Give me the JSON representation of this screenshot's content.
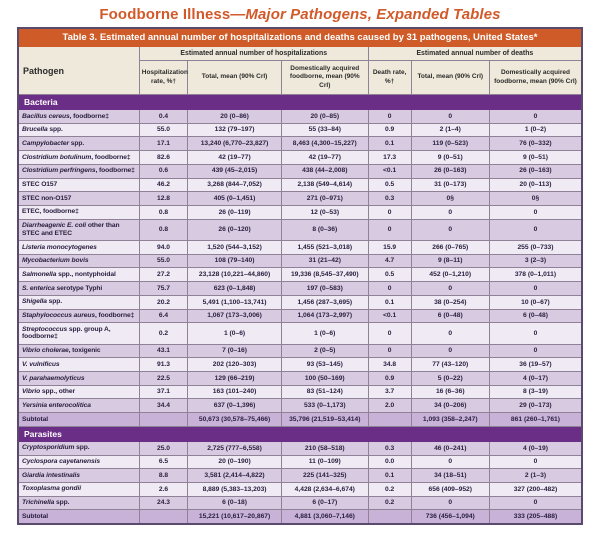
{
  "page_title": {
    "prefix": "Foodborne Illness—",
    "emphasis": "Major Pathogens, Expanded Tables"
  },
  "colors": {
    "accent_orange": "#cf5b28",
    "title_orange": "#d2592a",
    "section_purple": "#6b2e86",
    "row_dark": "#d8cbe1",
    "row_light": "#efeaf4",
    "subtotal_bg": "#c8b2d8",
    "header_cream": "#efe9db"
  },
  "table": {
    "caption": "Table 3. Estimated annual number of hospitalizations and deaths caused by 31 pathogens, United States*",
    "header": {
      "pathogen": "Pathogen",
      "groups": [
        "Estimated annual number of hospitalizations",
        "Estimated annual number of deaths"
      ],
      "subcols": [
        "Hospitalization rate, %†",
        "Total,  mean (90% CrI)",
        "Domestically acquired foodborne, mean (90% CrI)",
        "Death rate, %†",
        "Total,  mean (90% CrI)",
        "Domestically acquired foodborne, mean (90% CrI)"
      ]
    },
    "sections": [
      {
        "label": "Bacteria",
        "rows": [
          {
            "italic": "Bacillus cereus",
            "rest": ", foodborne‡",
            "cells": [
              "0.4",
              "20 (0–86)",
              "20 (0–85)",
              "0",
              "0",
              "0"
            ]
          },
          {
            "italic": "Brucella",
            "rest": " spp.",
            "cells": [
              "55.0",
              "132 (79–197)",
              "55 (33–84)",
              "0.9",
              "2 (1–4)",
              "1 (0–2)"
            ]
          },
          {
            "italic": "Campylobacter",
            "rest": " spp.",
            "cells": [
              "17.1",
              "13,240 (6,770–23,827)",
              "8,463 (4,300–15,227)",
              "0.1",
              "119 (0–523)",
              "76 (0–332)"
            ]
          },
          {
            "italic": "Clostridium botulinum",
            "rest": ", foodborne‡",
            "cells": [
              "82.6",
              "42 (19–77)",
              "42 (19–77)",
              "17.3",
              "9 (0–51)",
              "9 (0–51)"
            ]
          },
          {
            "italic": "Clostridium perfringens",
            "rest": ", foodborne‡",
            "cells": [
              "0.6",
              "439 (45–2,015)",
              "438 (44–2,008)",
              "<0.1",
              "26 (0–163)",
              "26 (0–163)"
            ]
          },
          {
            "italic": "",
            "rest": "STEC O157",
            "cells": [
              "46.2",
              "3,268 (844–7,052)",
              "2,138 (549–4,614)",
              "0.5",
              "31 (0–173)",
              "20 (0–113)"
            ]
          },
          {
            "italic": "",
            "rest": "STEC non-O157",
            "cells": [
              "12.8",
              "405 (0–1,451)",
              "271 (0–971)",
              "0.3",
              "0§",
              "0§"
            ]
          },
          {
            "italic": "",
            "rest": "ETEC, foodborne‡",
            "cells": [
              "0.8",
              "26 (0–119)",
              "12 (0–53)",
              "0",
              "0",
              "0"
            ]
          },
          {
            "italic": "Diarrheagenic E. coli",
            "rest": " other than STEC and ETEC",
            "cells": [
              "0.8",
              "26 (0–120)",
              "8 (0–36)",
              "0",
              "0",
              "0"
            ]
          },
          {
            "italic": "Listeria monocytogenes",
            "rest": "",
            "cells": [
              "94.0",
              "1,520 (544–3,152)",
              "1,455 (521–3,018)",
              "15.9",
              "266 (0–765)",
              "255 (0–733)"
            ]
          },
          {
            "italic": "Mycobacterium bovis",
            "rest": "",
            "cells": [
              "55.0",
              "108 (79–140)",
              "31 (21–42)",
              "4.7",
              "9 (8–11)",
              "3 (2–3)"
            ]
          },
          {
            "italic": "Salmonella",
            "rest": " spp., nontyphoidal",
            "cells": [
              "27.2",
              "23,128 (10,221–44,860)",
              "19,336 (8,545–37,490)",
              "0.5",
              "452 (0–1,210)",
              "378 (0–1,011)"
            ]
          },
          {
            "italic": "S. enterica",
            "rest": " serotype Typhi",
            "cells": [
              "75.7",
              "623 (0–1,848)",
              "197 (0–583)",
              "0",
              "0",
              "0"
            ]
          },
          {
            "italic": "Shigella",
            "rest": " spp.",
            "cells": [
              "20.2",
              "5,491 (1,100–13,741)",
              "1,456 (287–3,695)",
              "0.1",
              "38 (0–254)",
              "10 (0–67)"
            ]
          },
          {
            "italic": "Staphylococcus aureus",
            "rest": ", foodborne‡",
            "cells": [
              "6.4",
              "1,067 (173–3,006)",
              "1,064 (173–2,997)",
              "<0.1",
              "6 (0–48)",
              "6 (0–48)"
            ]
          },
          {
            "italic": "Streptococcus",
            "rest": " spp. group A, foodborne‡",
            "cells": [
              "0.2",
              "1 (0–6)",
              "1 (0–6)",
              "0",
              "0",
              "0"
            ]
          },
          {
            "italic": "Vibrio cholerae",
            "rest": ", toxigenic",
            "cells": [
              "43.1",
              "7 (0–16)",
              "2 (0–5)",
              "0",
              "0",
              "0"
            ]
          },
          {
            "italic": "V. vulnificus",
            "rest": "",
            "cells": [
              "91.3",
              "202 (120–303)",
              "93 (53–145)",
              "34.8",
              "77 (43–120)",
              "36 (19–57)"
            ]
          },
          {
            "italic": "V. parahaemolyticus",
            "rest": "",
            "cells": [
              "22.5",
              "129 (66–219)",
              "100 (50–169)",
              "0.9",
              "5 (0–22)",
              "4 (0–17)"
            ]
          },
          {
            "italic": "Vibrio",
            "rest": " spp., other",
            "cells": [
              "37.1",
              "163 (101–240)",
              "83 (51–124)",
              "3.7",
              "16 (6–36)",
              "8 (3–19)"
            ]
          },
          {
            "italic": "Yersinia enterocolitica",
            "rest": "",
            "cells": [
              "34.4",
              "637 (0–1,396)",
              "533 (0–1,173)",
              "2.0",
              "34 (0–206)",
              "29 (0–173)"
            ]
          },
          {
            "subtotal": true,
            "italic": "",
            "rest": "Subtotal",
            "cells": [
              "",
              "50,673 (30,578–75,466)",
              "35,796 (21,519–53,414)",
              "",
              "1,093 (358–2,247)",
              "861 (260–1,761)"
            ]
          }
        ]
      },
      {
        "label": "Parasites",
        "rows": [
          {
            "italic": "Cryptosporidium",
            "rest": " spp.",
            "cells": [
              "25.0",
              "2,725 (777–6,558)",
              "210 (58–518)",
              "0.3",
              "46 (0–241)",
              "4 (0–19)"
            ]
          },
          {
            "italic": "Cyclospora cayetanensis",
            "rest": "",
            "cells": [
              "6.5",
              "20 (0–190)",
              "11 (0–109)",
              "0.0",
              "0",
              "0"
            ]
          },
          {
            "italic": "Giardia intestinalis",
            "rest": "",
            "cells": [
              "8.8",
              "3,581 (2,414–4,822)",
              "225 (141–325)",
              "0.1",
              "34 (18–51)",
              "2 (1–3)"
            ]
          },
          {
            "italic": "Toxoplasma gondii",
            "rest": "",
            "cells": [
              "2.6",
              "8,889 (5,383–13,203)",
              "4,428 (2,634–6,674)",
              "0.2",
              "656 (409–952)",
              "327 (200–482)"
            ]
          },
          {
            "italic": "Trichinella",
            "rest": " spp.",
            "cells": [
              "24.3",
              "6 (0–18)",
              "6 (0–17)",
              "0.2",
              "0",
              "0"
            ]
          },
          {
            "subtotal": true,
            "italic": "",
            "rest": "Subtotal",
            "cells": [
              "",
              "15,221 (10,617–20,867)",
              "4,881 (3,060–7,146)",
              "",
              "736 (456–1,094)",
              "333 (205–488)"
            ]
          }
        ]
      }
    ]
  }
}
